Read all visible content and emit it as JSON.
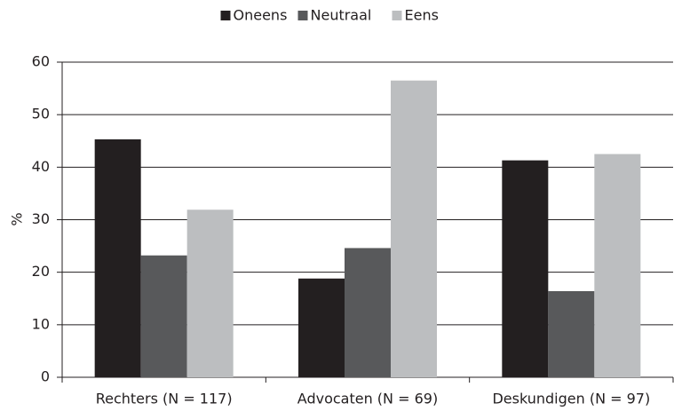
{
  "chart_data": {
    "type": "bar",
    "y_label": "%",
    "categories": [
      "Rechters (N = 117)",
      "Advocaten (N = 69)",
      "Deskundigen (N = 97)"
    ],
    "series": [
      {
        "name": "Oneens",
        "color": "#231f20",
        "values": [
          45.3,
          18.8,
          41.3
        ]
      },
      {
        "name": "Neutraal",
        "color": "#58595b",
        "values": [
          23.2,
          24.6,
          16.4
        ]
      },
      {
        "name": "Eens",
        "color": "#bcbec0",
        "values": [
          31.9,
          56.5,
          42.5
        ]
      }
    ],
    "ylim": [
      0,
      60
    ],
    "yticks": [
      0,
      10,
      20,
      30,
      40,
      50,
      60
    ],
    "grid": true,
    "legend": "top"
  }
}
